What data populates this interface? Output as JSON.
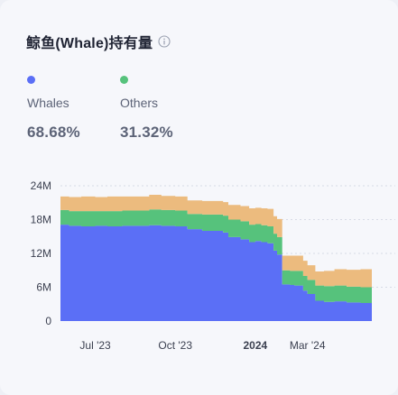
{
  "title": "鲸鱼(Whale)持有量",
  "legend": [
    {
      "name": "Whales",
      "value": "68.68%",
      "color": "#5b6ff6"
    },
    {
      "name": "Others",
      "value": "31.32%",
      "color": "#56c27c"
    }
  ],
  "chart_data": {
    "type": "area",
    "stacked": true,
    "y_ticks": [
      "0",
      "6M",
      "12M",
      "18M",
      "24M"
    ],
    "ylim": [
      0,
      24000000
    ],
    "x_ticks": [
      {
        "label": "Jul '23",
        "date": "2023-07-01",
        "bold": false
      },
      {
        "label": "Oct '23",
        "date": "2023-10-01",
        "bold": false
      },
      {
        "label": "2024",
        "date": "2024-01-01",
        "bold": true
      },
      {
        "label": "Mar '24",
        "date": "2024-03-01",
        "bold": false
      }
    ],
    "xlim": [
      "2023-05-22",
      "2024-05-14"
    ],
    "grid": true,
    "x": [
      "2023-05-22",
      "2023-06-01",
      "2023-06-15",
      "2023-07-01",
      "2023-07-15",
      "2023-08-01",
      "2023-08-15",
      "2023-09-01",
      "2023-09-15",
      "2023-10-01",
      "2023-10-15",
      "2023-10-25",
      "2023-11-01",
      "2023-11-15",
      "2023-11-25",
      "2023-12-01",
      "2023-12-15",
      "2023-12-25",
      "2024-01-01",
      "2024-01-08",
      "2024-01-15",
      "2024-01-22",
      "2024-01-26",
      "2024-02-01",
      "2024-02-10",
      "2024-02-15",
      "2024-02-25",
      "2024-03-01",
      "2024-03-10",
      "2024-03-20",
      "2024-04-01",
      "2024-04-15",
      "2024-05-01",
      "2024-05-14"
    ],
    "series": [
      {
        "name": "Whales",
        "color": "#5b6ff6",
        "values": [
          17100000,
          16900000,
          16800000,
          16900000,
          16800000,
          16900000,
          16900000,
          17000000,
          16900000,
          16800000,
          16300000,
          16300000,
          16000000,
          16000000,
          15700000,
          14900000,
          14500000,
          14000000,
          14200000,
          14000000,
          13800000,
          12500000,
          11800000,
          6500000,
          6400000,
          6300000,
          5400000,
          4800000,
          3600000,
          3400000,
          3500000,
          3300000,
          3200000,
          3200000
        ]
      },
      {
        "name": "Others",
        "color": "#56c27c",
        "values": [
          2600000,
          2600000,
          2700000,
          2600000,
          2700000,
          2700000,
          2700000,
          2800000,
          2800000,
          2800000,
          2700000,
          2700000,
          2900000,
          2900000,
          3000000,
          3100000,
          3200000,
          3100000,
          3000000,
          3000000,
          3000000,
          3000000,
          3100000,
          2500000,
          2500000,
          2600000,
          2600000,
          2500000,
          2700000,
          2800000,
          2800000,
          2800000,
          2800000,
          2900000
        ]
      },
      {
        "color": "#ecbb7e",
        "values": [
          2400000,
          2500000,
          2600000,
          2500000,
          2600000,
          2500000,
          2500000,
          2600000,
          2500000,
          2500000,
          2400000,
          2400000,
          2400000,
          2400000,
          2400000,
          2600000,
          2700000,
          2900000,
          2900000,
          3000000,
          3100000,
          3100000,
          3200000,
          2600000,
          2700000,
          2700000,
          2700000,
          2600000,
          2500000,
          2700000,
          2900000,
          3000000,
          3200000,
          3300000
        ]
      }
    ]
  }
}
